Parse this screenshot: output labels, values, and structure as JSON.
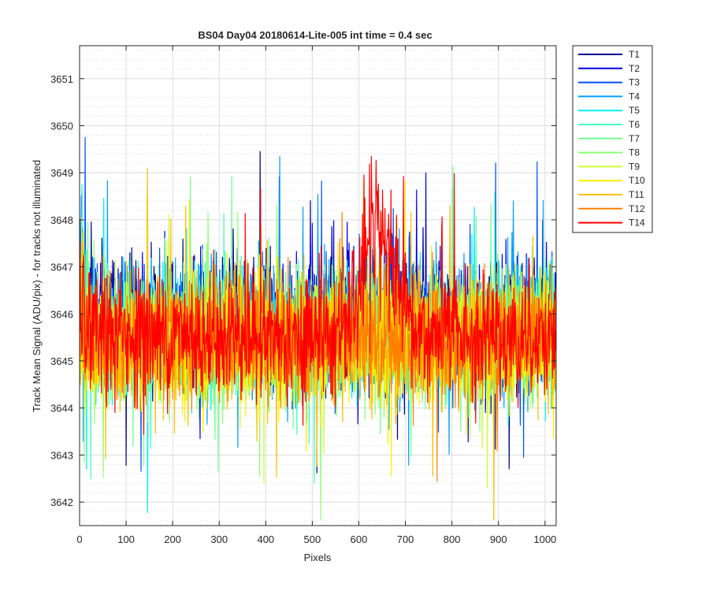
{
  "chart_data": {
    "type": "line",
    "title": "BS04 Day04 20180614-Lite-005 int time = 0.4 sec",
    "xlabel": "Pixels",
    "ylabel": "Track Mean Signal (ADU/pix) - for tracks not illuminated",
    "xlim": [
      0,
      1024
    ],
    "ylim": [
      3641.5,
      3651.7
    ],
    "xticks": [
      0,
      100,
      200,
      300,
      400,
      500,
      600,
      700,
      800,
      900,
      1000
    ],
    "yticks": [
      3642,
      3643,
      3644,
      3645,
      3646,
      3647,
      3648,
      3649,
      3650,
      3651
    ],
    "xtick_labels": [
      "0",
      "100",
      "200",
      "300",
      "400",
      "500",
      "600",
      "700",
      "800",
      "900",
      "1000"
    ],
    "ytick_labels": [
      "3642",
      "3643",
      "3644",
      "3645",
      "3646",
      "3647",
      "3648",
      "3649",
      "3650",
      "3651"
    ],
    "grid": true,
    "minor_grid": true,
    "legend_position": "outside-top-right",
    "x_points": 1024,
    "series": [
      {
        "name": "T1",
        "color": "#00008F",
        "mean": 3645.9,
        "noise": 0.85
      },
      {
        "name": "T2",
        "color": "#0000EF",
        "mean": 3645.85,
        "noise": 0.85
      },
      {
        "name": "T3",
        "color": "#0050FF",
        "mean": 3645.8,
        "noise": 0.85
      },
      {
        "name": "T4",
        "color": "#00A0FF",
        "mean": 3645.7,
        "noise": 0.85
      },
      {
        "name": "T5",
        "color": "#00EFFF",
        "mean": 3645.6,
        "noise": 0.85
      },
      {
        "name": "T6",
        "color": "#40FFBF",
        "mean": 3645.55,
        "noise": 0.85
      },
      {
        "name": "T7",
        "color": "#6FFF8F",
        "mean": 3645.5,
        "noise": 0.85
      },
      {
        "name": "T8",
        "color": "#8FFF70",
        "mean": 3645.45,
        "noise": 0.85
      },
      {
        "name": "T9",
        "color": "#CFFF30",
        "mean": 3645.45,
        "noise": 0.85
      },
      {
        "name": "T10",
        "color": "#FFEF00",
        "mean": 3645.4,
        "noise": 0.85
      },
      {
        "name": "T11",
        "color": "#FFBF00",
        "mean": 3645.45,
        "noise": 0.85
      },
      {
        "name": "T12",
        "color": "#FF8000",
        "mean": 3645.5,
        "noise": 0.85
      },
      {
        "name": "T14",
        "color": "#FF0000",
        "mean": 3645.55,
        "noise": 0.85,
        "bump": {
          "center": 640,
          "width": 45,
          "height": 2.3
        }
      }
    ]
  }
}
